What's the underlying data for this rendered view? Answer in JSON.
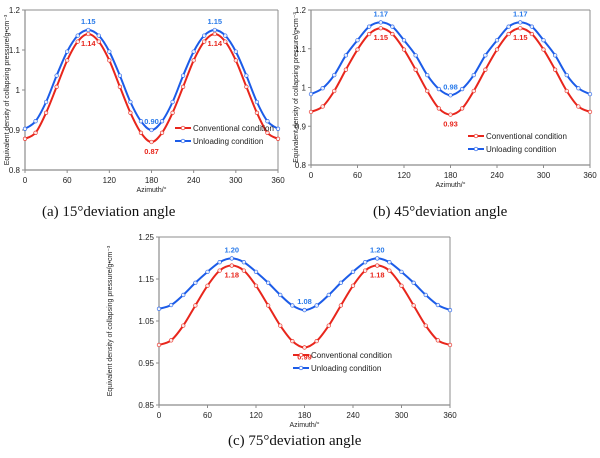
{
  "colors": {
    "conventional": "#e8261c",
    "unloading": "#1c5ce8",
    "conventional_label": "#e8261c",
    "unloading_label": "#2a7bea",
    "axis": "#8c8c8c",
    "text": "#222222"
  },
  "captions": {
    "a": "(a) 15°deviation angle",
    "b": "(b) 45°deviation angle",
    "c": "(c) 75°deviation angle"
  },
  "chart_data": [
    {
      "id": "a",
      "type": "line",
      "title": "(a) 15°deviation angle",
      "xlabel": "Azimuth/°",
      "ylabel": "Equivalent density of collapsing pressure/g•cm⁻³",
      "xlim": [
        0,
        360
      ],
      "ylim": [
        0.8,
        1.2
      ],
      "xticks": [
        0,
        60,
        120,
        180,
        240,
        300,
        360
      ],
      "yticks": [
        0.8,
        0.9,
        1.0,
        1.1,
        1.2
      ],
      "ytick_labels": [
        "0.8",
        "0.9",
        "1",
        "1.1",
        "1.2"
      ],
      "grid": false,
      "legend_position": "lower-right",
      "x": [
        0,
        15,
        30,
        45,
        60,
        75,
        90,
        105,
        120,
        135,
        150,
        165,
        180,
        195,
        210,
        225,
        240,
        255,
        270,
        285,
        300,
        315,
        330,
        345,
        360
      ],
      "series": [
        {
          "name": "Conventional condition",
          "key": "conventional",
          "values": [
            0.878,
            0.893,
            0.943,
            1.008,
            1.074,
            1.121,
            1.14,
            1.121,
            1.074,
            1.008,
            0.943,
            0.893,
            0.87,
            0.893,
            0.943,
            1.008,
            1.074,
            1.121,
            1.14,
            1.121,
            1.074,
            1.008,
            0.943,
            0.893,
            0.878
          ]
        },
        {
          "name": "Unloading condition",
          "key": "unloading",
          "values": [
            0.903,
            0.922,
            0.97,
            1.036,
            1.096,
            1.136,
            1.15,
            1.136,
            1.096,
            1.036,
            0.97,
            0.922,
            0.9,
            0.922,
            0.97,
            1.036,
            1.096,
            1.136,
            1.15,
            1.136,
            1.096,
            1.036,
            0.97,
            0.922,
            0.903
          ]
        }
      ],
      "annotations": [
        {
          "series": "unloading",
          "x": 90,
          "text": "1.15",
          "pos": "above"
        },
        {
          "series": "conventional",
          "x": 90,
          "text": "1.14",
          "pos": "below"
        },
        {
          "series": "unloading",
          "x": 270,
          "text": "1.15",
          "pos": "above"
        },
        {
          "series": "conventional",
          "x": 270,
          "text": "1.14",
          "pos": "below"
        },
        {
          "series": "unloading",
          "x": 180,
          "text": "0.90",
          "pos": "above"
        },
        {
          "series": "conventional",
          "x": 180,
          "text": "0.87",
          "pos": "below"
        }
      ]
    },
    {
      "id": "b",
      "type": "line",
      "title": "(b) 45°deviation angle",
      "xlabel": "Azimuth/°",
      "ylabel": "Equivalent density of collapsing pressure/g•cm⁻³",
      "xlim": [
        0,
        360
      ],
      "ylim": [
        0.8,
        1.2
      ],
      "xticks": [
        0,
        60,
        120,
        180,
        240,
        300,
        360
      ],
      "yticks": [
        0.8,
        0.9,
        1.0,
        1.1,
        1.2
      ],
      "ytick_labels": [
        "0.8",
        "0.9",
        "1",
        "1.1",
        "1.2"
      ],
      "grid": false,
      "legend_position": "lower-right",
      "x": [
        0,
        15,
        30,
        45,
        60,
        75,
        90,
        105,
        120,
        135,
        150,
        165,
        180,
        195,
        210,
        225,
        240,
        255,
        270,
        285,
        300,
        315,
        330,
        345,
        360
      ],
      "series": [
        {
          "name": "Conventional condition",
          "key": "conventional",
          "values": [
            0.937,
            0.951,
            0.991,
            1.046,
            1.098,
            1.138,
            1.153,
            1.138,
            1.098,
            1.046,
            0.991,
            0.946,
            0.93,
            0.946,
            0.991,
            1.046,
            1.098,
            1.138,
            1.153,
            1.138,
            1.098,
            1.046,
            0.991,
            0.951,
            0.937
          ]
        },
        {
          "name": "Unloading condition",
          "key": "unloading",
          "values": [
            0.983,
            0.998,
            1.032,
            1.083,
            1.122,
            1.157,
            1.168,
            1.157,
            1.122,
            1.083,
            1.032,
            0.996,
            0.98,
            0.996,
            1.032,
            1.083,
            1.122,
            1.157,
            1.168,
            1.157,
            1.122,
            1.083,
            1.032,
            0.998,
            0.983
          ]
        }
      ],
      "annotations": [
        {
          "series": "unloading",
          "x": 90,
          "text": "1.17",
          "pos": "above"
        },
        {
          "series": "conventional",
          "x": 90,
          "text": "1.15",
          "pos": "below"
        },
        {
          "series": "unloading",
          "x": 270,
          "text": "1.17",
          "pos": "above"
        },
        {
          "series": "conventional",
          "x": 270,
          "text": "1.15",
          "pos": "below"
        },
        {
          "series": "unloading",
          "x": 180,
          "text": "0.98",
          "pos": "above"
        },
        {
          "series": "conventional",
          "x": 180,
          "text": "0.93",
          "pos": "below"
        }
      ]
    },
    {
      "id": "c",
      "type": "line",
      "title": "(c) 75°deviation angle",
      "xlabel": "Azimuth/°",
      "ylabel": "Equivalent density of collapsing pressure/g•cm⁻³",
      "xlim": [
        0,
        360
      ],
      "ylim": [
        0.85,
        1.25
      ],
      "xticks": [
        0,
        60,
        120,
        180,
        240,
        300,
        360
      ],
      "yticks": [
        0.85,
        0.95,
        1.05,
        1.15,
        1.25
      ],
      "ytick_labels": [
        "0.85",
        "0.95",
        "1.05",
        "1.15",
        "1.25"
      ],
      "grid": false,
      "legend_position": "lower-right",
      "x": [
        0,
        15,
        30,
        45,
        60,
        75,
        90,
        105,
        120,
        135,
        150,
        165,
        180,
        195,
        210,
        225,
        240,
        255,
        270,
        285,
        300,
        315,
        330,
        345,
        360
      ],
      "series": [
        {
          "name": "Conventional condition",
          "key": "conventional",
          "values": [
            0.993,
            1.004,
            1.039,
            1.087,
            1.134,
            1.17,
            1.182,
            1.17,
            1.134,
            1.087,
            1.039,
            1.002,
            0.987,
            1.002,
            1.039,
            1.087,
            1.134,
            1.17,
            1.182,
            1.17,
            1.134,
            1.087,
            1.039,
            1.004,
            0.993
          ]
        },
        {
          "name": "Unloading condition",
          "key": "unloading",
          "values": [
            1.079,
            1.088,
            1.112,
            1.141,
            1.167,
            1.19,
            1.199,
            1.19,
            1.167,
            1.141,
            1.112,
            1.087,
            1.076,
            1.087,
            1.112,
            1.141,
            1.167,
            1.19,
            1.199,
            1.19,
            1.167,
            1.141,
            1.112,
            1.088,
            1.076
          ]
        }
      ],
      "annotations": [
        {
          "series": "unloading",
          "x": 90,
          "text": "1.20",
          "pos": "above"
        },
        {
          "series": "conventional",
          "x": 90,
          "text": "1.18",
          "pos": "below"
        },
        {
          "series": "unloading",
          "x": 270,
          "text": "1.20",
          "pos": "above"
        },
        {
          "series": "conventional",
          "x": 270,
          "text": "1.18",
          "pos": "below"
        },
        {
          "series": "unloading",
          "x": 180,
          "text": "1.08",
          "pos": "above"
        },
        {
          "series": "conventional",
          "x": 180,
          "text": "0.99",
          "pos": "below"
        }
      ]
    }
  ]
}
